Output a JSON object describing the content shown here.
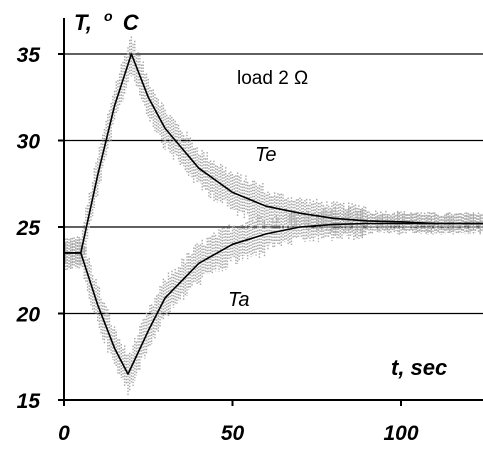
{
  "chart_data": {
    "type": "line",
    "title": "",
    "xlabel": "t, sec",
    "ylabel": "T, ° C",
    "ylabel_main": "T,",
    "ylabel_degree": "o",
    "ylabel_unit": "C",
    "xlim": [
      0,
      125
    ],
    "ylim": [
      15,
      36
    ],
    "x_ticks": [
      0,
      50,
      100
    ],
    "y_ticks": [
      15,
      20,
      25,
      30,
      35
    ],
    "grid": "horizontal",
    "annotation": "load 2 Ω",
    "noise_color": "#a8a8a8",
    "line_color": "#000000",
    "series": [
      {
        "name": "Te",
        "label": "Te",
        "x": [
          0,
          5,
          10,
          15,
          20,
          25,
          30,
          40,
          50,
          60,
          70,
          80,
          90,
          100,
          110,
          125
        ],
        "y": [
          23.5,
          23.5,
          28.0,
          32.0,
          35.0,
          32.5,
          30.7,
          28.4,
          27.0,
          26.2,
          25.8,
          25.5,
          25.35,
          25.3,
          25.2,
          25.2
        ]
      },
      {
        "name": "Ta",
        "label": "Ta",
        "x": [
          0,
          5,
          10,
          15,
          19,
          25,
          30,
          40,
          50,
          60,
          70,
          80,
          90,
          100,
          110,
          125
        ],
        "y": [
          23.5,
          23.5,
          20.5,
          18.0,
          16.5,
          19.0,
          20.9,
          22.9,
          24.0,
          24.6,
          25.0,
          25.15,
          25.2,
          25.2,
          25.2,
          25.2
        ]
      }
    ]
  }
}
